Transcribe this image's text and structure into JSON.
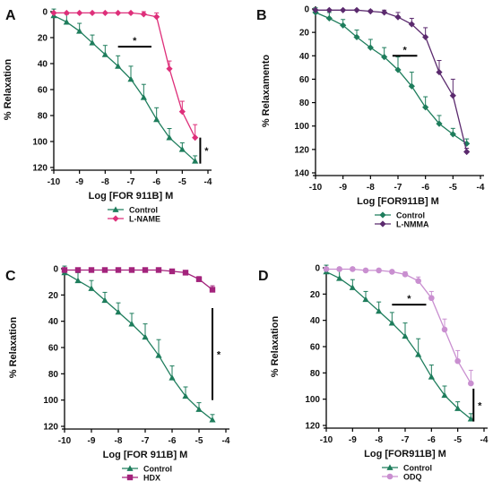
{
  "figure": {
    "background": "#ffffff"
  },
  "chart_data": [
    {
      "type": "line",
      "panel_label": "A",
      "xlabel": "Log [FOR 911B] M",
      "ylabel": "% Relaxation",
      "xlim": [
        -10,
        -4
      ],
      "ylim": [
        0,
        120
      ],
      "xticks": [
        -10,
        -9,
        -8,
        -7,
        -6,
        -5,
        -4
      ],
      "yticks": [
        0,
        20,
        40,
        60,
        80,
        100,
        120
      ],
      "y_inverted": true,
      "legend": "bottom-center",
      "series": [
        {
          "name": "Control",
          "marker": "triangle",
          "color": "#1e7d5c",
          "x": [
            -10,
            -9.5,
            -9,
            -8.5,
            -8,
            -7.5,
            -7,
            -6.5,
            -6,
            -5.5,
            -5,
            -4.5
          ],
          "y": [
            3,
            8,
            15,
            24,
            33,
            42,
            52,
            66,
            83,
            97,
            106,
            115
          ],
          "err": [
            5,
            6,
            6,
            6,
            7,
            8,
            10,
            10,
            9,
            7,
            5,
            4
          ]
        },
        {
          "name": "L-NAME",
          "marker": "diamond",
          "color": "#de2f7a",
          "x": [
            -10,
            -9.5,
            -9,
            -8.5,
            -8,
            -7.5,
            -7,
            -6.5,
            -6,
            -5.5,
            -5,
            -4.5
          ],
          "y": [
            1,
            1,
            1,
            1,
            1,
            1,
            1,
            2,
            4,
            44,
            77,
            97
          ],
          "err": [
            0,
            0,
            0,
            0,
            0,
            0,
            0,
            2,
            3,
            6,
            8,
            10
          ]
        }
      ],
      "annotations": [
        {
          "text": "*",
          "x_range": [
            -7.5,
            -6.2
          ],
          "y": 27
        },
        {
          "text": "*",
          "x": -4.3,
          "y_range": [
            97,
            117
          ]
        }
      ]
    },
    {
      "type": "line",
      "panel_label": "B",
      "xlabel": "Log [FOR911B] M",
      "ylabel": "% Relaxamento",
      "xlim": [
        -10,
        -4
      ],
      "ylim": [
        0,
        140
      ],
      "xticks": [
        -10,
        -9,
        -8,
        -7,
        -6,
        -5,
        -4
      ],
      "yticks": [
        0,
        20,
        40,
        60,
        80,
        100,
        120,
        140
      ],
      "y_inverted": true,
      "legend": "bottom-center",
      "series": [
        {
          "name": "Control",
          "marker": "diamond",
          "color": "#1e7d5c",
          "x": [
            -10,
            -9.5,
            -9,
            -8.5,
            -8,
            -7.5,
            -7,
            -6.5,
            -6,
            -5.5,
            -5,
            -4.5
          ],
          "y": [
            3,
            8,
            14,
            24,
            33,
            41,
            52,
            66,
            84,
            98,
            107,
            115
          ],
          "err": [
            4,
            5,
            5,
            6,
            7,
            8,
            11,
            12,
            9,
            7,
            5,
            4
          ]
        },
        {
          "name": "L-NMMA",
          "marker": "diamond",
          "color": "#5b2a6e",
          "x": [
            -10,
            -9.5,
            -9,
            -8.5,
            -8,
            -7.5,
            -7,
            -6.5,
            -6,
            -5.5,
            -5,
            -4.5
          ],
          "y": [
            1,
            1,
            1,
            1,
            2,
            3,
            7,
            13,
            24,
            54,
            74,
            122
          ],
          "err": [
            0,
            0,
            0,
            0,
            1,
            2,
            4,
            5,
            8,
            10,
            14,
            3
          ]
        }
      ],
      "annotations": [
        {
          "text": "*",
          "x_range": [
            -7.2,
            -6.3
          ],
          "y": 40
        }
      ]
    },
    {
      "type": "line",
      "panel_label": "C",
      "xlabel": "Log [FOR 911B] M",
      "ylabel": "% Relaxation",
      "xlim": [
        -10,
        -4
      ],
      "ylim": [
        0,
        120
      ],
      "xticks": [
        -10,
        -9,
        -8,
        -7,
        -6,
        -5,
        -4
      ],
      "yticks": [
        0,
        20,
        40,
        60,
        80,
        100,
        120
      ],
      "y_inverted": true,
      "legend": "bottom-center",
      "series": [
        {
          "name": "Control",
          "marker": "triangle",
          "color": "#1e7d5c",
          "x": [
            -10,
            -9.5,
            -9,
            -8.5,
            -8,
            -7.5,
            -7,
            -6.5,
            -6,
            -5.5,
            -5,
            -4.5
          ],
          "y": [
            3,
            9,
            15,
            24,
            33,
            42,
            52,
            66,
            83,
            97,
            107,
            115
          ],
          "err": [
            5,
            6,
            6,
            6,
            7,
            8,
            10,
            12,
            9,
            7,
            5,
            4
          ]
        },
        {
          "name": "HDX",
          "marker": "square",
          "color": "#a3237c",
          "x": [
            -10,
            -9.5,
            -9,
            -8.5,
            -8,
            -7.5,
            -7,
            -6.5,
            -6,
            -5.5,
            -5,
            -4.5
          ],
          "y": [
            1,
            1,
            1,
            1,
            1,
            1,
            1,
            1,
            2,
            3,
            8,
            16
          ],
          "err": [
            0,
            0,
            0,
            0,
            0,
            0,
            0,
            0,
            1,
            1,
            2,
            3
          ]
        }
      ],
      "annotations": [
        {
          "text": "*",
          "x": -4.5,
          "y_range": [
            30,
            100
          ]
        }
      ]
    },
    {
      "type": "line",
      "panel_label": "D",
      "xlabel": "Log [FOR911B] M",
      "ylabel": "% Relaxation",
      "xlim": [
        -10,
        -4
      ],
      "ylim": [
        0,
        120
      ],
      "xticks": [
        -10,
        -9,
        -8,
        -7,
        -6,
        -5,
        -4
      ],
      "yticks": [
        0,
        20,
        40,
        60,
        80,
        100,
        120
      ],
      "y_inverted": true,
      "legend": "bottom-center",
      "series": [
        {
          "name": "Control",
          "marker": "triangle",
          "color": "#1e7d5c",
          "x": [
            -10,
            -9.5,
            -9,
            -8.5,
            -8,
            -7.5,
            -7,
            -6.5,
            -6,
            -5.5,
            -5,
            -4.5
          ],
          "y": [
            3,
            8,
            15,
            24,
            33,
            42,
            52,
            66,
            83,
            97,
            107,
            115
          ],
          "err": [
            5,
            6,
            6,
            6,
            7,
            8,
            10,
            12,
            9,
            7,
            5,
            4
          ]
        },
        {
          "name": "ODQ",
          "marker": "circle",
          "color": "#c98fd0",
          "x": [
            -10,
            -9.5,
            -9,
            -8.5,
            -8,
            -7.5,
            -7,
            -6.5,
            -6,
            -5.5,
            -5,
            -4.5
          ],
          "y": [
            1,
            1,
            1,
            2,
            2,
            3,
            5,
            10,
            23,
            47,
            71,
            88
          ],
          "err": [
            0,
            0,
            0,
            0,
            1,
            1,
            2,
            3,
            5,
            8,
            8,
            10
          ]
        }
      ],
      "annotations": [
        {
          "text": "*",
          "x_range": [
            -7.5,
            -6.2
          ],
          "y": 28
        },
        {
          "text": "*",
          "x": -4.4,
          "y_range": [
            92,
            117
          ]
        }
      ]
    }
  ]
}
